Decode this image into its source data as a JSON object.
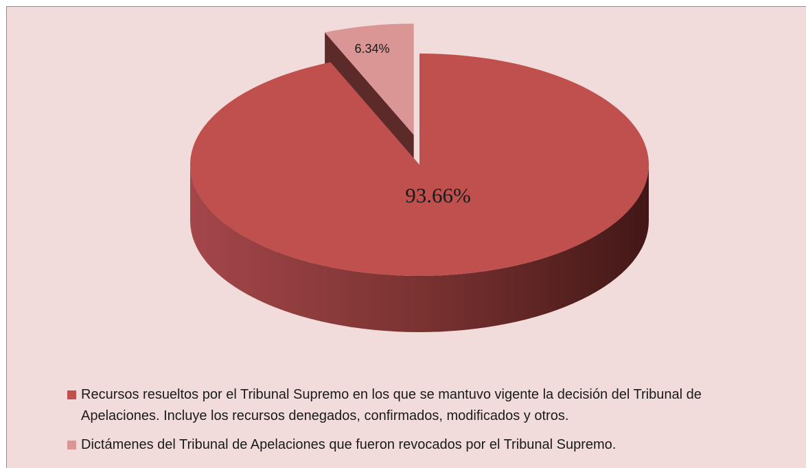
{
  "chart_data": {
    "type": "pie3d",
    "categories": [
      "Recursos resueltos por el Tribunal Supremo en los que se mantuvo vigente la decisión del Tribunal de Apelaciones. Incluye los recursos denegados, confirmados, modificados y otros.",
      "Dictámenes del Tribunal de Apelaciones que fueron revocados por el Tribunal Supremo."
    ],
    "values": [
      93.66,
      6.34
    ],
    "value_labels": [
      "93.66%",
      "6.34%"
    ],
    "colors": [
      "#c0504d",
      "#d99694"
    ],
    "legend": "bottom"
  }
}
